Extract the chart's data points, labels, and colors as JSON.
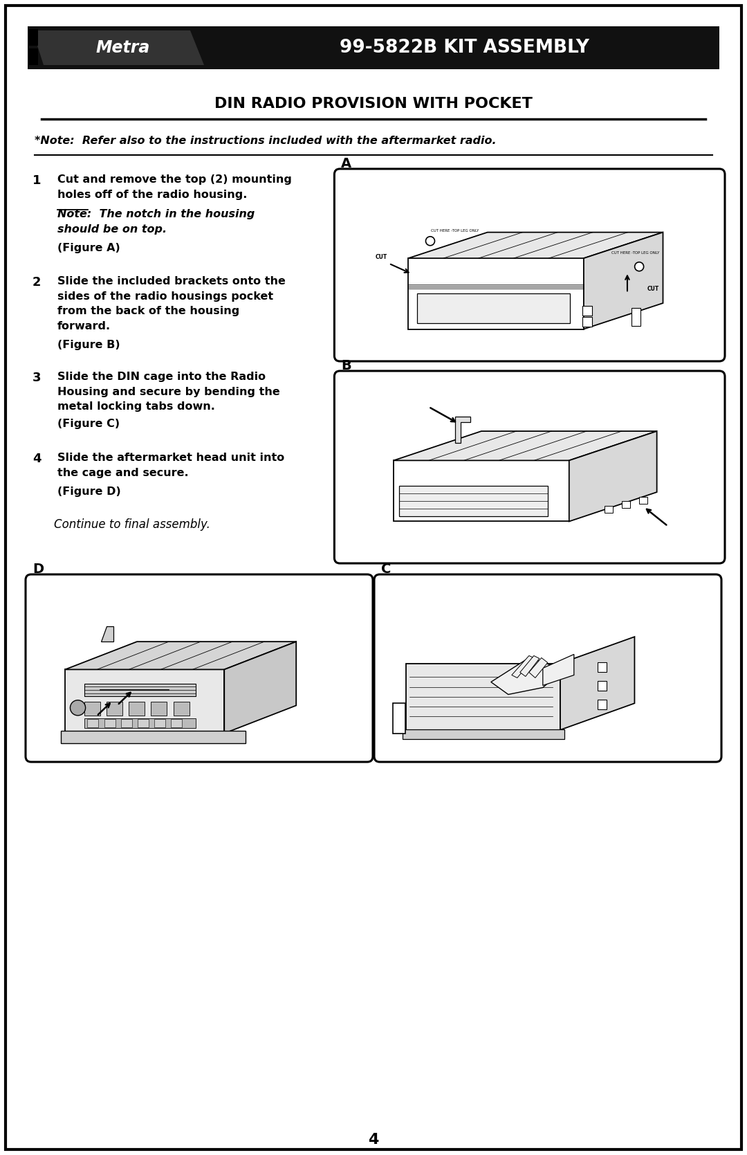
{
  "page_width": 10.8,
  "page_height": 16.69,
  "bg_color": "#ffffff",
  "header_bg": "#111111",
  "header_text": "99-5822B KIT ASSEMBLY",
  "header_text_color": "#ffffff",
  "title": "DIN RADIO PROVISION WITH POCKET",
  "note_line": "*Note:  Refer also to the instructions included with the aftermarket radio.",
  "step1_line1": "Cut and remove the top (2) mounting",
  "step1_line2": "holes off of the radio housing.",
  "step1_note_bold": "Note:  The notch in the housing",
  "step1_note_bold2": "should be on top.",
  "step1_suffix": "(Figure A)",
  "step2_text": "Slide the included brackets onto the\nsides of the radio housings pocket\nfrom the back of the housing\nforward.",
  "step2_suffix": "(Figure B)",
  "step3_text": "Slide the DIN cage into the Radio\nHousing and secure by bending the\nmetal locking tabs down.",
  "step3_suffix": "(Figure C)",
  "step4_text": "Slide the aftermarket head unit into\nthe cage and secure.",
  "step4_suffix": "(Figure D)",
  "continue_text": "Continue to final assembly.",
  "page_number": "4",
  "ml": 0.45,
  "mr": 0.45,
  "mt": 0.38
}
